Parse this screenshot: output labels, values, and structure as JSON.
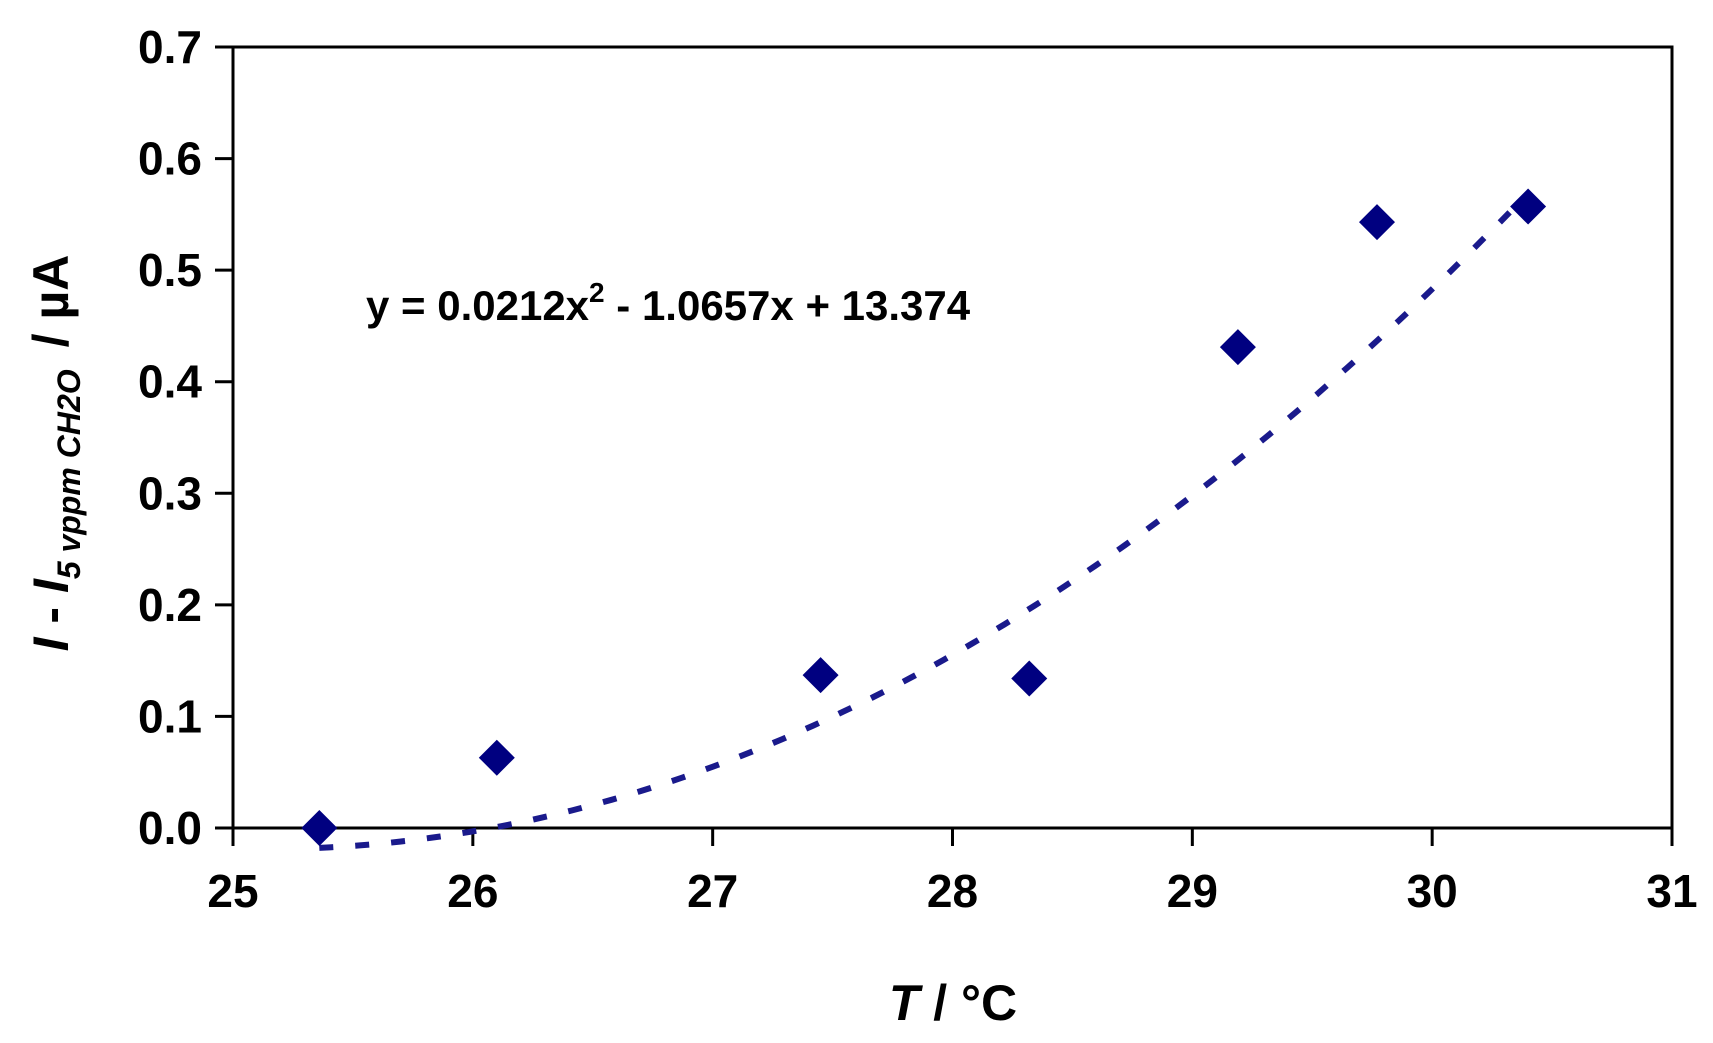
{
  "chart_data": {
    "type": "scatter",
    "title": "",
    "xlabel": {
      "var": "T",
      "unit": " / °C"
    },
    "ylabel": {
      "var1": "I",
      "sep": " - ",
      "var2": "I",
      "sub": "5 vppm CH2O",
      "unit": "/ µA"
    },
    "xlim": [
      25,
      31
    ],
    "ylim": [
      0,
      0.7
    ],
    "xticks": [
      "25",
      "26",
      "27",
      "28",
      "29",
      "30",
      "31"
    ],
    "yticks": [
      "0.0",
      "0.1",
      "0.2",
      "0.3",
      "0.4",
      "0.5",
      "0.6",
      "0.7"
    ],
    "grid": false,
    "legend": "none",
    "marker_color": "#000080",
    "trendline_color": "#1a1a8c",
    "series": [
      {
        "marker": "diamond",
        "x": [
          25.36,
          26.1,
          27.45,
          28.32,
          29.19,
          29.77,
          30.4
        ],
        "y": [
          0.0,
          0.063,
          0.137,
          0.134,
          0.431,
          0.543,
          0.557
        ]
      }
    ],
    "trendline": {
      "type": "polynomial",
      "order": 2,
      "coefficients": [
        0.0212,
        -1.0657,
        13.374
      ],
      "x_range": [
        25.36,
        30.4
      ],
      "style": "dotted",
      "equation": {
        "lhs": "y = 0.0212x",
        "sup": "2",
        "rhs": " - 1.0657x + 13.374"
      }
    }
  }
}
